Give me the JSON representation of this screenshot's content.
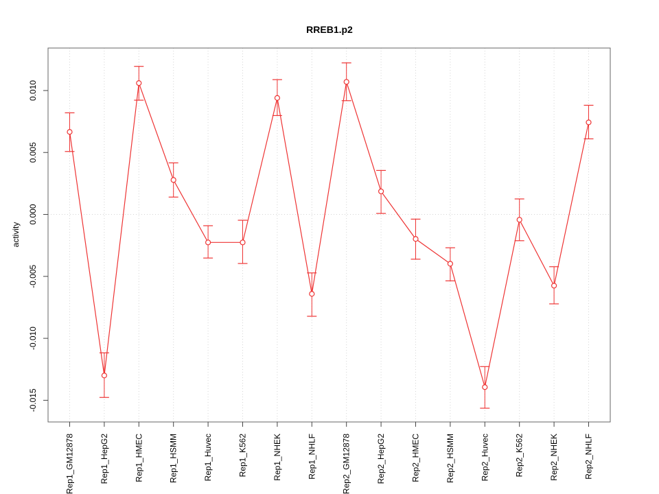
{
  "chart_data": {
    "type": "line",
    "title": "RREB1.p2",
    "xlabel": "",
    "ylabel": "activity",
    "categories": [
      "Rep1_GM12878",
      "Rep1_HepG2",
      "Rep1_HMEC",
      "Rep1_HSMM",
      "Rep1_Huvec",
      "Rep1_K562",
      "Rep1_NHEK",
      "Rep1_NHLF",
      "Rep2_GM12878",
      "Rep2_HepG2",
      "Rep2_HMEC",
      "Rep2_HSMM",
      "Rep2_Huvec",
      "Rep2_K562",
      "Rep2_NHEK",
      "Rep2_NHLF"
    ],
    "series": [
      {
        "name": "activity",
        "marker": "open-circle",
        "values": [
          0.00666,
          -0.013,
          0.0106,
          0.00278,
          -0.00226,
          -0.00226,
          0.0094,
          -0.00641,
          0.0107,
          0.00186,
          -0.00198,
          -0.00398,
          -0.01394,
          -0.00043,
          -0.00575,
          0.00743
        ],
        "upper": [
          0.0082,
          -0.01117,
          0.01195,
          0.00416,
          -0.00091,
          -0.00047,
          0.01088,
          -0.00472,
          0.01223,
          0.00355,
          -0.00038,
          -0.00269,
          -0.01228,
          0.00125,
          -0.00422,
          0.00881
        ],
        "lower": [
          0.00508,
          -0.01477,
          0.00922,
          0.0014,
          -0.00352,
          -0.00396,
          0.00798,
          -0.00822,
          0.00918,
          8e-05,
          -0.00361,
          -0.00536,
          -0.01564,
          -0.00212,
          -0.00722,
          0.0061
        ]
      }
    ],
    "yticks": [
      -0.015,
      -0.01,
      -0.005,
      0,
      0.005,
      0.01
    ],
    "ylim": [
      -0.01675,
      0.01343
    ],
    "grid": {
      "vertical": "per-category",
      "horizontal_at": 0,
      "style": "dotted"
    },
    "legend": "none",
    "colors": {
      "series": "#ee3333",
      "grid": "#d4d4d4",
      "box": "#666666",
      "tick": "#444444",
      "text": "#000000",
      "background": "#ffffff"
    }
  }
}
